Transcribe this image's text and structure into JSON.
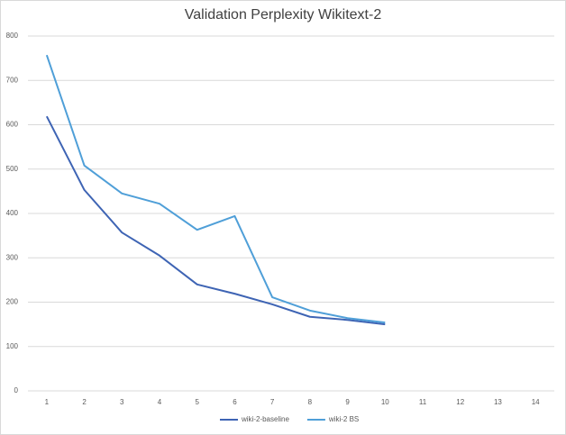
{
  "chart_data": {
    "type": "line",
    "title": "Validation Perplexity Wikitext-2",
    "categories": [
      1,
      2,
      3,
      4,
      5,
      6,
      7,
      8,
      9,
      10,
      11,
      12,
      13,
      14
    ],
    "series": [
      {
        "name": "wiki-2-baseline",
        "color": "#3e64b4",
        "values": [
          619,
          453,
          357,
          305,
          240,
          219,
          195,
          167,
          160,
          150,
          null,
          null,
          null,
          null
        ]
      },
      {
        "name": "wiki-2 BS",
        "color": "#4f9fd8",
        "values": [
          757,
          508,
          445,
          422,
          363,
          394,
          211,
          181,
          164,
          154,
          null,
          null,
          null,
          null
        ]
      }
    ],
    "ylim": [
      0,
      800
    ],
    "yticks": [
      0,
      100,
      200,
      300,
      400,
      500,
      600,
      700,
      800
    ],
    "grid": true,
    "legend": "bottom"
  }
}
